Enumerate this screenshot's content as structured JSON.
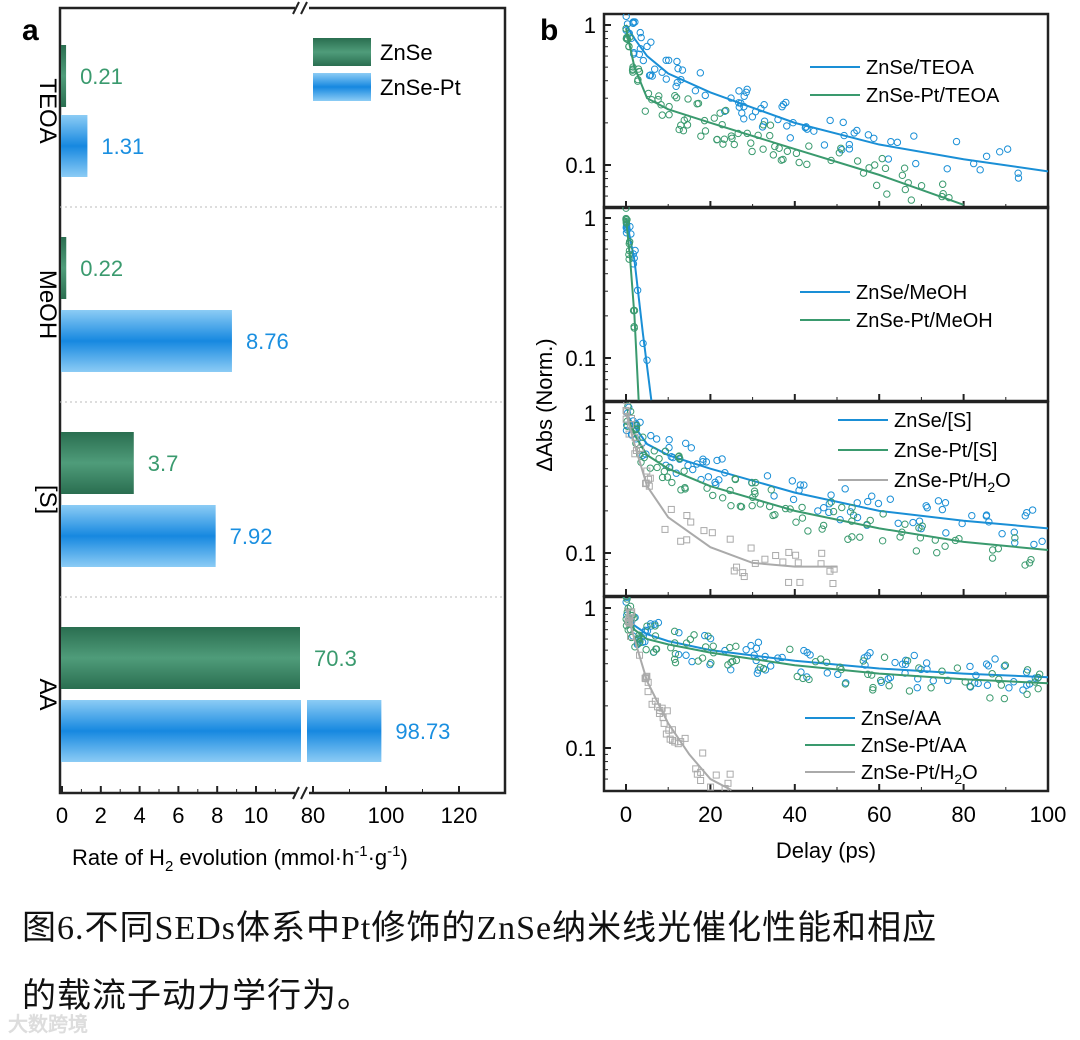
{
  "chart_data": [
    {
      "type": "bar",
      "panel_label": "a",
      "orientation": "horizontal",
      "categories": [
        "TEOA",
        "MeOH",
        "[S]",
        "AA"
      ],
      "series": [
        {
          "name": "ZnSe",
          "color": "#2f7d5c",
          "label_color": "#3a9a6e",
          "values": [
            0.21,
            0.22,
            3.7,
            70.3
          ],
          "labels": [
            "0.21",
            "0.22",
            "3.7",
            "70.3"
          ]
        },
        {
          "name": "ZnSe-Pt",
          "color": "#1e90e6",
          "label_color": "#1a8fe0",
          "values": [
            1.31,
            8.76,
            7.92,
            98.73
          ],
          "labels": [
            "1.31",
            "8.76",
            "7.92",
            "98.73"
          ]
        }
      ],
      "xlabel": "Rate of H2 evolution (mmol·h-1·g-1)",
      "xlabel_parts": {
        "pre": "Rate of H",
        "sub": "2",
        "mid": " evolution (mmol·h",
        "sup1": "-1",
        "dot": "·g",
        "sup2": "-1",
        "post": ")"
      },
      "x_axis_break": [
        12,
        78
      ],
      "xlim": [
        0,
        130
      ],
      "xticks": [
        "0",
        "2",
        "4",
        "6",
        "8",
        "10",
        "80",
        "100",
        "120"
      ],
      "legend_placement": "top-right"
    },
    {
      "type": "line",
      "panel_label": "b",
      "xlabel": "Delay (ps)",
      "ylabel": "ΔAbs (Norm.)",
      "yscale": "log",
      "xlim": [
        -5,
        100
      ],
      "ylim": [
        0.05,
        1.2
      ],
      "xticks": [
        "0",
        "20",
        "40",
        "60",
        "80",
        "100"
      ],
      "yticks": [
        "1",
        "0.1"
      ],
      "panels": [
        {
          "series": [
            {
              "name": "ZnSe/TEOA",
              "color": "#1a8fd6",
              "x": [
                0,
                2,
                5,
                10,
                20,
                40,
                60,
                80,
                100
              ],
              "y": [
                1,
                0.8,
                0.6,
                0.45,
                0.33,
                0.2,
                0.14,
                0.11,
                0.09
              ]
            },
            {
              "name": "ZnSe-Pt/TEOA",
              "color": "#3a9a6e",
              "x": [
                0,
                2,
                5,
                10,
                20,
                40,
                60,
                80
              ],
              "y": [
                0.95,
                0.5,
                0.3,
                0.25,
                0.2,
                0.13,
                0.085,
                0.052
              ]
            }
          ]
        },
        {
          "series": [
            {
              "name": "ZnSe/MeOH",
              "color": "#1a8fd6",
              "x": [
                0,
                2,
                4,
                6
              ],
              "y": [
                1,
                0.5,
                0.15,
                0.05
              ]
            },
            {
              "name": "ZnSe-Pt/MeOH",
              "color": "#3a9a6e",
              "x": [
                0,
                1,
                2,
                3
              ],
              "y": [
                1,
                0.5,
                0.2,
                0.05
              ]
            }
          ]
        },
        {
          "series": [
            {
              "name": "ZnSe/[S]",
              "color": "#1a8fd6",
              "x": [
                0,
                2,
                5,
                10,
                20,
                40,
                60,
                80,
                100
              ],
              "y": [
                1,
                0.8,
                0.6,
                0.5,
                0.4,
                0.27,
                0.2,
                0.17,
                0.15
              ]
            },
            {
              "name": "ZnSe-Pt/[S]",
              "color": "#3a9a6e",
              "x": [
                0,
                2,
                5,
                10,
                20,
                40,
                60,
                80,
                100
              ],
              "y": [
                1,
                0.7,
                0.5,
                0.4,
                0.3,
                0.2,
                0.15,
                0.12,
                0.105
              ]
            },
            {
              "name": "ZnSe-Pt/H2O",
              "label_pre": "ZnSe-Pt/H",
              "label_sub": "2",
              "label_post": "O",
              "color": "#aaaaaa",
              "x": [
                0,
                2,
                5,
                10,
                20,
                30,
                40,
                50
              ],
              "y": [
                1,
                0.6,
                0.3,
                0.18,
                0.11,
                0.085,
                0.08,
                0.08
              ]
            }
          ]
        },
        {
          "series": [
            {
              "name": "ZnSe/AA",
              "color": "#1a8fd6",
              "x": [
                0,
                2,
                5,
                10,
                20,
                40,
                60,
                80,
                100
              ],
              "y": [
                1,
                0.75,
                0.65,
                0.58,
                0.5,
                0.42,
                0.37,
                0.34,
                0.32
              ]
            },
            {
              "name": "ZnSe-Pt/AA",
              "color": "#3a9a6e",
              "x": [
                0,
                2,
                5,
                10,
                20,
                40,
                60,
                80,
                100
              ],
              "y": [
                1,
                0.7,
                0.6,
                0.55,
                0.48,
                0.39,
                0.34,
                0.31,
                0.29
              ]
            },
            {
              "name": "ZnSe-Pt/H2O",
              "label_pre": "ZnSe-Pt/H",
              "label_sub": "2",
              "label_post": "O",
              "color": "#aaaaaa",
              "x": [
                0,
                2,
                5,
                10,
                15,
                20,
                25
              ],
              "y": [
                1,
                0.6,
                0.3,
                0.15,
                0.09,
                0.06,
                0.05
              ]
            }
          ]
        }
      ]
    }
  ],
  "caption": {
    "line1": "图6.不同SEDs体系中Pt修饰的ZnSe纳米线光催化性能和相应",
    "line2": "的载流子动力学行为。"
  },
  "watermark": "大数跨境"
}
